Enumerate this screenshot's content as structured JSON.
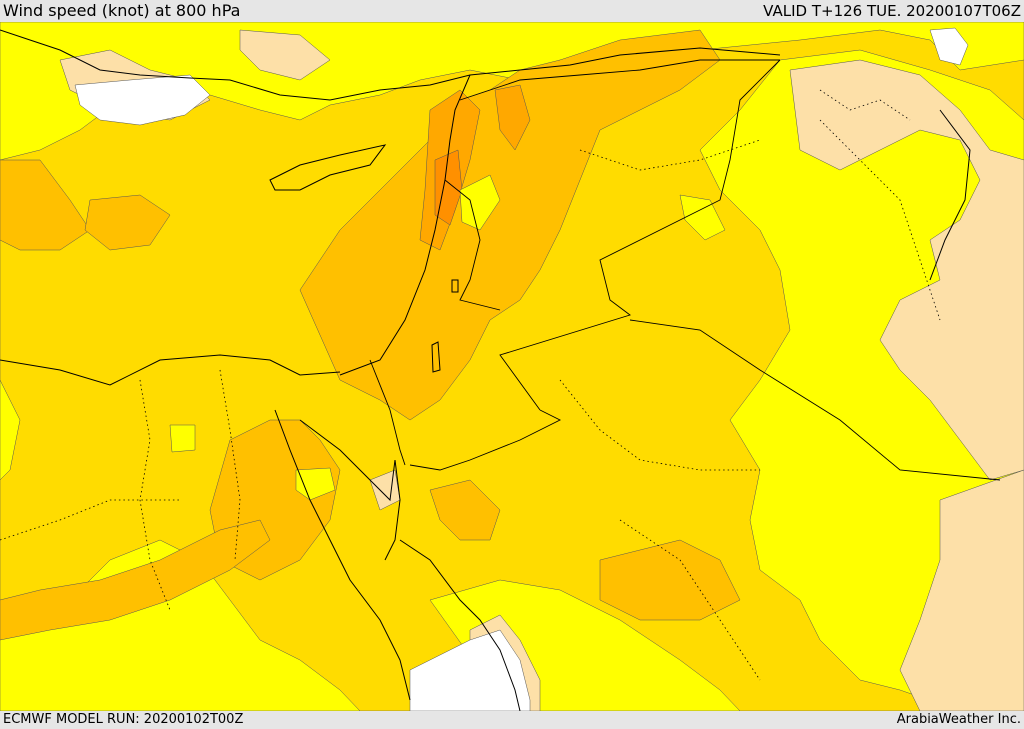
{
  "header": {
    "title": "Wind speed (knot) at 800 hPa",
    "valid": "VALID T+126 TUE. 20200107T06Z"
  },
  "footer": {
    "model_run": "ECMWF MODEL RUN: 20200102T00Z",
    "credit": "ArabiaWeather Inc."
  },
  "map": {
    "colors": {
      "calm": "#ffffff",
      "light": "#fde0a8",
      "yellow": "#ffff00",
      "gold": "#ffdc00",
      "amber": "#ffc000",
      "orange": "#ffa800",
      "strong": "#ff9000",
      "coast": "#000000"
    }
  }
}
